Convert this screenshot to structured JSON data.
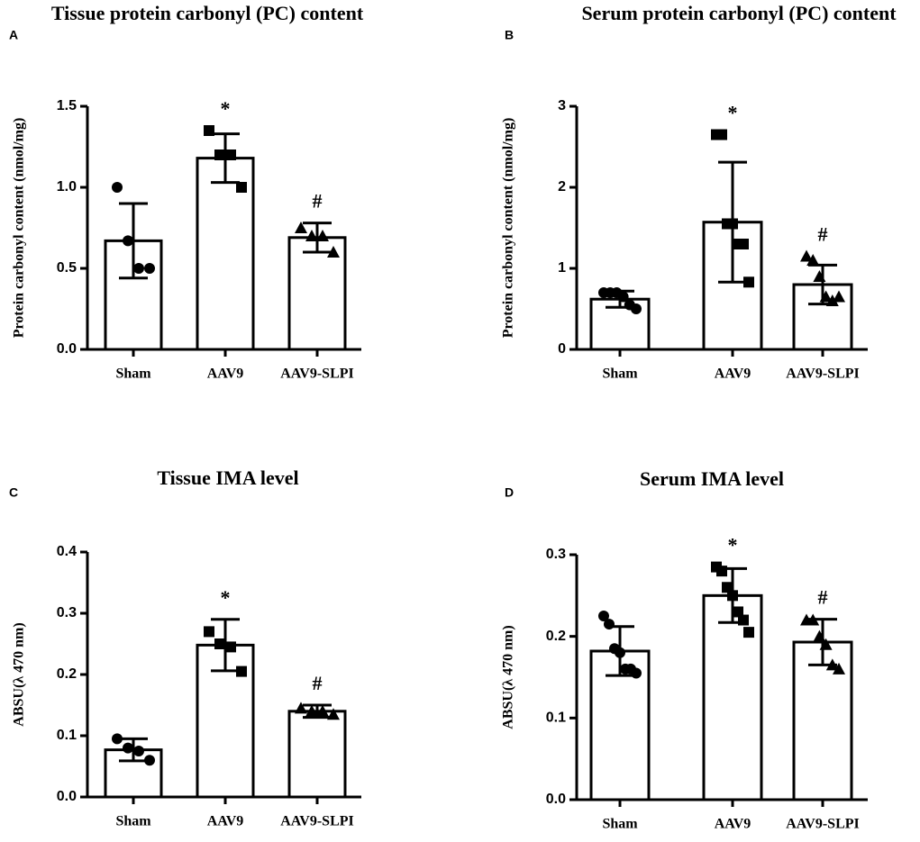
{
  "chart_data": [
    {
      "type": "bar",
      "panel": "A",
      "title": "Tissue protein carbonyl (PC) content",
      "ylabel": "Protein carbonyl content (nmol/mg)",
      "categories": [
        "Sham",
        "AAV9",
        "AAV9-SLPI"
      ],
      "values": [
        0.67,
        1.18,
        0.69
      ],
      "errors": [
        0.23,
        0.15,
        0.09
      ],
      "points": [
        [
          1.0,
          0.67,
          0.5,
          0.5
        ],
        [
          1.35,
          1.2,
          1.2,
          1.0
        ],
        [
          0.75,
          0.7,
          0.7,
          0.6
        ]
      ],
      "markers": [
        "circle",
        "square",
        "triangle"
      ],
      "annotations": [
        null,
        "*",
        "#"
      ],
      "color": "#000000",
      "ylim": [
        0,
        1.5
      ],
      "yticks": [
        {
          "value": 0,
          "label": "0.0"
        },
        0.5,
        {
          "value": 1,
          "label": "1.0"
        },
        1.5
      ]
    },
    {
      "type": "bar",
      "panel": "B",
      "title": "Serum protein carbonyl (PC) content",
      "ylabel": "Protein carbonyl content (nmol/mg)",
      "categories": [
        "Sham",
        "AAV9",
        "AAV9-SLPI"
      ],
      "values": [
        0.62,
        1.57,
        0.8
      ],
      "errors": [
        0.1,
        0.74,
        0.24
      ],
      "points": [
        [
          0.7,
          0.7,
          0.7,
          0.65,
          0.55,
          0.5
        ],
        [
          2.65,
          2.65,
          1.55,
          1.55,
          1.3,
          1.3,
          0.83
        ],
        [
          1.15,
          1.1,
          0.9,
          0.65,
          0.6,
          0.65
        ]
      ],
      "markers": [
        "circle",
        "square",
        "triangle"
      ],
      "annotations": [
        null,
        "*",
        "#"
      ],
      "color": "#000000",
      "ylim": [
        0,
        3
      ],
      "yticks": [
        0,
        1,
        2,
        3
      ]
    },
    {
      "type": "bar",
      "panel": "C",
      "title": "Tissue IMA level",
      "ylabel": "ABSU(λ 470 nm)",
      "categories": [
        "Sham",
        "AAV9",
        "AAV9-SLPI"
      ],
      "values": [
        0.077,
        0.248,
        0.14
      ],
      "errors": [
        0.018,
        0.042,
        0.01
      ],
      "points": [
        [
          0.095,
          0.08,
          0.075,
          0.06
        ],
        [
          0.27,
          0.25,
          0.245,
          0.205
        ],
        [
          0.145,
          0.14,
          0.14,
          0.135
        ]
      ],
      "markers": [
        "circle",
        "square",
        "triangle"
      ],
      "annotations": [
        null,
        "*",
        "#"
      ],
      "color": "#000000",
      "ylim": [
        0,
        0.4
      ],
      "yticks": [
        {
          "value": 0,
          "label": "0.0"
        },
        0.1,
        0.2,
        0.3,
        0.4
      ]
    },
    {
      "type": "bar",
      "panel": "D",
      "title": "Serum IMA level",
      "ylabel": "ABSU(λ 470 nm)",
      "categories": [
        "Sham",
        "AAV9",
        "AAV9-SLPI"
      ],
      "values": [
        0.182,
        0.25,
        0.193
      ],
      "errors": [
        0.03,
        0.033,
        0.028
      ],
      "points": [
        [
          0.225,
          0.215,
          0.185,
          0.18,
          0.16,
          0.16,
          0.155
        ],
        [
          0.285,
          0.28,
          0.26,
          0.25,
          0.23,
          0.22,
          0.205
        ],
        [
          0.22,
          0.22,
          0.2,
          0.19,
          0.165,
          0.16
        ]
      ],
      "markers": [
        "circle",
        "square",
        "triangle"
      ],
      "annotations": [
        null,
        "*",
        "#"
      ],
      "color": "#000000",
      "ylim": [
        0,
        0.3
      ],
      "yticks": [
        {
          "value": 0,
          "label": "0.0"
        },
        0.1,
        0.2,
        0.3
      ]
    }
  ]
}
